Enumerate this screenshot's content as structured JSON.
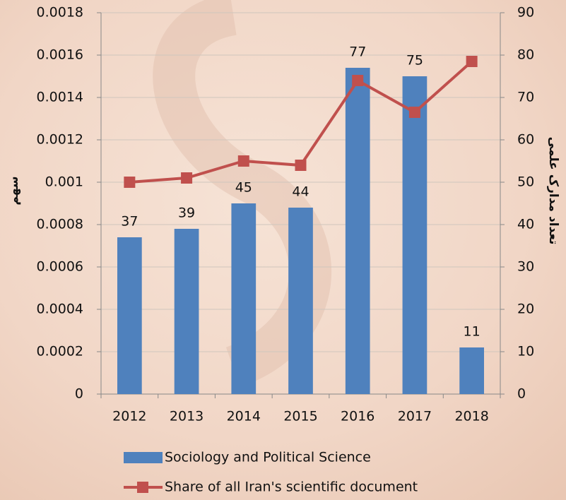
{
  "chart_data": {
    "type": "bar-line",
    "categories": [
      "2012",
      "2013",
      "2014",
      "2015",
      "2016",
      "2017",
      "2018"
    ],
    "series": [
      {
        "name": "Sociology and Political Science",
        "type": "bar",
        "axis": "y2",
        "color": "#4f81bd",
        "values": [
          37,
          39,
          45,
          44,
          77,
          75,
          11
        ]
      },
      {
        "name": "Share of all Iran's scientific document",
        "type": "line",
        "axis": "y",
        "color": "#c0504d",
        "values": [
          0.001,
          0.00102,
          0.0011,
          0.00108,
          0.00148,
          0.00133,
          0.00157
        ]
      }
    ],
    "ylabel": "سهم",
    "y2label": "تعداد مدارک علمی",
    "ylim": [
      0,
      0.0018
    ],
    "yticks": [
      0,
      0.0002,
      0.0004,
      0.0006,
      0.0008,
      0.001,
      0.0012,
      0.0014,
      0.0016,
      0.0018
    ],
    "y2lim": [
      0,
      90
    ],
    "y2ticks": [
      0,
      10,
      20,
      30,
      40,
      50,
      60,
      70,
      80,
      90
    ],
    "grid": true,
    "legend": "bottom"
  }
}
